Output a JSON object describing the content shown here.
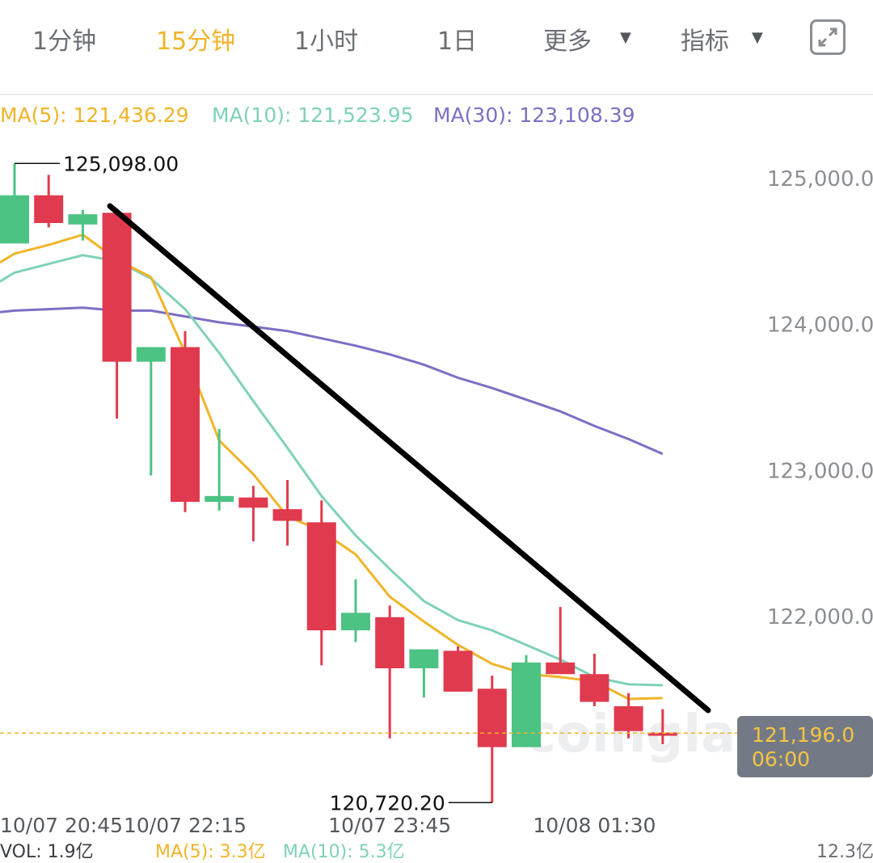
{
  "tabs": [
    {
      "label": "1分钟",
      "active": false
    },
    {
      "label": "15分钟",
      "active": true
    },
    {
      "label": "1小时",
      "active": false
    },
    {
      "label": "1日",
      "active": false
    },
    {
      "label": "更多",
      "active": false,
      "dropdown": true
    },
    {
      "label": "指标",
      "active": false,
      "dropdown": true
    }
  ],
  "ma_legend": [
    {
      "label": "MA(5): 121,436.29",
      "color": "#f0b429"
    },
    {
      "label": "MA(10): 121,523.95",
      "color": "#7fd1b9"
    },
    {
      "label": "MA(30): 123,108.39",
      "color": "#7c6fc4"
    }
  ],
  "watermark": "coinglass",
  "price_tag": {
    "price": "121,196.0",
    "countdown": "06:00"
  },
  "volume_legend": [
    "VOL: 1.9亿",
    "MA(5): 3.3亿",
    "MA(10): 5.3亿",
    "12.3亿"
  ],
  "chart_data": {
    "type": "candlestick",
    "y_range": [
      120600,
      125300
    ],
    "y_ticks": [
      "125,000.0",
      "124,000.0",
      "123,000.0",
      "122,000.0"
    ],
    "y_tick_values": [
      125000,
      124000,
      123000,
      122000
    ],
    "x_tick_labels": [
      "10/07 20:45",
      "10/07 22:15",
      "10/07 23:45",
      "10/08 01:30"
    ],
    "x_tick_candle_index": [
      0,
      5,
      11,
      17
    ],
    "colors": {
      "up": "#4cc283",
      "down": "#e03a4e",
      "ma5": "#f0b429",
      "ma10": "#7fd1b9",
      "ma30": "#7c6fc4"
    },
    "candles": [
      {
        "o": 124550,
        "h": 125098,
        "l": 124550,
        "c": 124880
      },
      {
        "o": 124880,
        "h": 125020,
        "l": 124660,
        "c": 124690
      },
      {
        "o": 124680,
        "h": 124780,
        "l": 124570,
        "c": 124750
      },
      {
        "o": 124760,
        "h": 124790,
        "l": 123350,
        "c": 123740
      },
      {
        "o": 123740,
        "h": 123840,
        "l": 122960,
        "c": 123840
      },
      {
        "o": 123840,
        "h": 123950,
        "l": 122710,
        "c": 122780
      },
      {
        "o": 122780,
        "h": 123280,
        "l": 122720,
        "c": 122820
      },
      {
        "o": 122810,
        "h": 122890,
        "l": 122510,
        "c": 122740
      },
      {
        "o": 122730,
        "h": 122930,
        "l": 122480,
        "c": 122650
      },
      {
        "o": 122640,
        "h": 122790,
        "l": 121660,
        "c": 121900
      },
      {
        "o": 121900,
        "h": 122250,
        "l": 121820,
        "c": 122020
      },
      {
        "o": 121990,
        "h": 122070,
        "l": 121160,
        "c": 121640
      },
      {
        "o": 121640,
        "h": 121750,
        "l": 121440,
        "c": 121770
      },
      {
        "o": 121760,
        "h": 121790,
        "l": 121480,
        "c": 121480
      },
      {
        "o": 121500,
        "h": 121590,
        "l": 120720,
        "c": 121100
      },
      {
        "o": 121100,
        "h": 121730,
        "l": 121100,
        "c": 121680
      },
      {
        "o": 121680,
        "h": 122060,
        "l": 121600,
        "c": 121600
      },
      {
        "o": 121600,
        "h": 121740,
        "l": 121380,
        "c": 121410
      },
      {
        "o": 121380,
        "h": 121470,
        "l": 121160,
        "c": 121210
      },
      {
        "o": 121200,
        "h": 121360,
        "l": 121120,
        "c": 121196
      }
    ],
    "ma5": [
      124480,
      124540,
      124610,
      124440,
      124320,
      123800,
      123200,
      122970,
      122680,
      122580,
      122420,
      122130,
      121960,
      121800,
      121670,
      121600,
      121580,
      121550,
      121430,
      121436
    ],
    "ma10": [
      124350,
      124410,
      124470,
      124430,
      124310,
      124100,
      123800,
      123470,
      123150,
      122820,
      122550,
      122320,
      122100,
      121970,
      121900,
      121800,
      121700,
      121580,
      121530,
      121524
    ],
    "ma30": [
      124090,
      124100,
      124110,
      124090,
      124090,
      124050,
      124010,
      123980,
      123950,
      123900,
      123850,
      123790,
      123720,
      123630,
      123560,
      123480,
      123400,
      123300,
      123210,
      123108
    ],
    "max_label": "125,098.00",
    "min_label": "120,720.20",
    "current_price": 121196.0
  }
}
